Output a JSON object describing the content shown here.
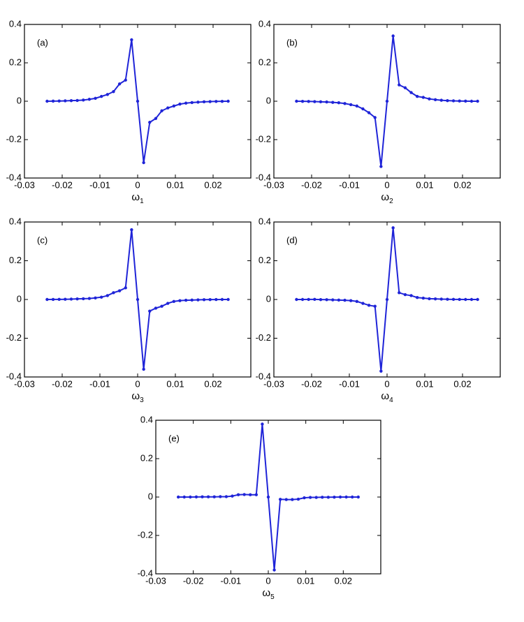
{
  "chart_data": [
    {
      "type": "line",
      "label": "(a)",
      "xlabel": "ω",
      "xlabel_subscript": "1",
      "color": "#1f24d8",
      "x": [
        -0.024,
        -0.0224,
        -0.0208,
        -0.0192,
        -0.0176,
        -0.016,
        -0.0144,
        -0.0128,
        -0.0112,
        -0.0096,
        -0.008,
        -0.0064,
        -0.0048,
        -0.0032,
        -0.0016,
        0,
        0.0016,
        0.0032,
        0.0048,
        0.0064,
        0.008,
        0.0096,
        0.0112,
        0.0128,
        0.0144,
        0.016,
        0.0176,
        0.0192,
        0.0208,
        0.0224,
        0.024
      ],
      "values": [
        0,
        0.0005,
        0.001,
        0.002,
        0.003,
        0.004,
        0.006,
        0.01,
        0.015,
        0.025,
        0.035,
        0.05,
        0.09,
        0.11,
        0.32,
        0,
        -0.32,
        -0.11,
        -0.09,
        -0.05,
        -0.035,
        -0.025,
        -0.015,
        -0.01,
        -0.007,
        -0.005,
        -0.003,
        -0.002,
        -0.001,
        -0.0005,
        0
      ],
      "xlim": [
        -0.03,
        0.03
      ],
      "xticks": [
        -0.03,
        -0.02,
        -0.01,
        0,
        0.01,
        0.02
      ],
      "ylim": [
        -0.4,
        0.4
      ],
      "yticks": [
        -0.4,
        -0.2,
        0,
        0.2,
        0.4
      ]
    },
    {
      "type": "line",
      "label": "(b)",
      "xlabel": "ω",
      "xlabel_subscript": "2",
      "color": "#1f24d8",
      "x": [
        -0.024,
        -0.0224,
        -0.0208,
        -0.0192,
        -0.0176,
        -0.016,
        -0.0144,
        -0.0128,
        -0.0112,
        -0.0096,
        -0.008,
        -0.0064,
        -0.0048,
        -0.0032,
        -0.0016,
        0,
        0.0016,
        0.0032,
        0.0048,
        0.0064,
        0.008,
        0.0096,
        0.0112,
        0.0128,
        0.0144,
        0.016,
        0.0176,
        0.0192,
        0.0208,
        0.0224,
        0.024
      ],
      "values": [
        0,
        -0.0005,
        -0.001,
        -0.002,
        -0.003,
        -0.004,
        -0.006,
        -0.008,
        -0.012,
        -0.018,
        -0.025,
        -0.04,
        -0.06,
        -0.085,
        -0.34,
        0,
        0.34,
        0.085,
        0.07,
        0.045,
        0.025,
        0.02,
        0.012,
        0.008,
        0.005,
        0.003,
        0.002,
        0.001,
        0.0005,
        0,
        0
      ],
      "xlim": [
        -0.03,
        0.03
      ],
      "xticks": [
        -0.03,
        -0.02,
        -0.01,
        0,
        0.01,
        0.02
      ],
      "ylim": [
        -0.4,
        0.4
      ],
      "yticks": [
        -0.4,
        -0.2,
        0,
        0.2,
        0.4
      ]
    },
    {
      "type": "line",
      "label": "(c)",
      "xlabel": "ω",
      "xlabel_subscript": "3",
      "color": "#1f24d8",
      "x": [
        -0.024,
        -0.0224,
        -0.0208,
        -0.0192,
        -0.0176,
        -0.016,
        -0.0144,
        -0.0128,
        -0.0112,
        -0.0096,
        -0.008,
        -0.0064,
        -0.0048,
        -0.0032,
        -0.0016,
        0,
        0.0016,
        0.0032,
        0.0048,
        0.0064,
        0.008,
        0.0096,
        0.0112,
        0.0128,
        0.0144,
        0.016,
        0.0176,
        0.0192,
        0.0208,
        0.0224,
        0.024
      ],
      "values": [
        0,
        0.0003,
        0.0006,
        0.001,
        0.002,
        0.003,
        0.004,
        0.005,
        0.008,
        0.012,
        0.02,
        0.035,
        0.045,
        0.06,
        0.36,
        0,
        -0.36,
        -0.06,
        -0.045,
        -0.035,
        -0.02,
        -0.01,
        -0.006,
        -0.004,
        -0.003,
        -0.002,
        -0.001,
        -0.0005,
        -0.0003,
        0,
        0
      ],
      "xlim": [
        -0.03,
        0.03
      ],
      "xticks": [
        -0.03,
        -0.02,
        -0.01,
        0,
        0.01,
        0.02
      ],
      "ylim": [
        -0.4,
        0.4
      ],
      "yticks": [
        -0.4,
        -0.2,
        0,
        0.2,
        0.4
      ]
    },
    {
      "type": "line",
      "label": "(d)",
      "xlabel": "ω",
      "xlabel_subscript": "4",
      "color": "#1f24d8",
      "x": [
        -0.024,
        -0.0224,
        -0.0208,
        -0.0192,
        -0.0176,
        -0.016,
        -0.0144,
        -0.0128,
        -0.0112,
        -0.0096,
        -0.008,
        -0.0064,
        -0.0048,
        -0.0032,
        -0.0016,
        0,
        0.0016,
        0.0032,
        0.0048,
        0.0064,
        0.008,
        0.0096,
        0.0112,
        0.0128,
        0.0144,
        0.016,
        0.0176,
        0.0192,
        0.0208,
        0.0224,
        0.024
      ],
      "values": [
        0,
        0,
        0.0003,
        0.0005,
        -0.0005,
        -0.001,
        -0.002,
        -0.003,
        -0.004,
        -0.006,
        -0.01,
        -0.02,
        -0.03,
        -0.035,
        -0.37,
        0,
        0.37,
        0.035,
        0.025,
        0.02,
        0.01,
        0.007,
        0.004,
        0.003,
        0.002,
        0.001,
        0.0005,
        0.0003,
        0,
        0,
        0
      ],
      "xlim": [
        -0.03,
        0.03
      ],
      "xticks": [
        -0.03,
        -0.02,
        -0.01,
        0,
        0.01,
        0.02
      ],
      "ylim": [
        -0.4,
        0.4
      ],
      "yticks": [
        -0.4,
        -0.2,
        0,
        0.2,
        0.4
      ]
    },
    {
      "type": "line",
      "label": "(e)",
      "xlabel": "ω",
      "xlabel_subscript": "5",
      "color": "#1f24d8",
      "x": [
        -0.024,
        -0.0224,
        -0.0208,
        -0.0192,
        -0.0176,
        -0.016,
        -0.0144,
        -0.0128,
        -0.0112,
        -0.0096,
        -0.008,
        -0.0064,
        -0.0048,
        -0.0032,
        -0.0016,
        0,
        0.0016,
        0.0032,
        0.0048,
        0.0064,
        0.008,
        0.0096,
        0.0112,
        0.0128,
        0.0144,
        0.016,
        0.0176,
        0.0192,
        0.0208,
        0.0224,
        0.024
      ],
      "values": [
        0,
        0,
        0,
        0.0005,
        0.001,
        0.001,
        0.001,
        0.002,
        0.002,
        0.005,
        0.012,
        0.013,
        0.012,
        0.012,
        0.38,
        0,
        -0.38,
        -0.012,
        -0.013,
        -0.013,
        -0.011,
        -0.004,
        -0.002,
        -0.002,
        -0.001,
        -0.001,
        -0.0005,
        0,
        0,
        0,
        0
      ],
      "xlim": [
        -0.03,
        0.03
      ],
      "xticks": [
        -0.03,
        -0.02,
        -0.01,
        0,
        0.01,
        0.02
      ],
      "ylim": [
        -0.4,
        0.4
      ],
      "yticks": [
        -0.4,
        -0.2,
        0,
        0.2,
        0.4
      ]
    }
  ]
}
